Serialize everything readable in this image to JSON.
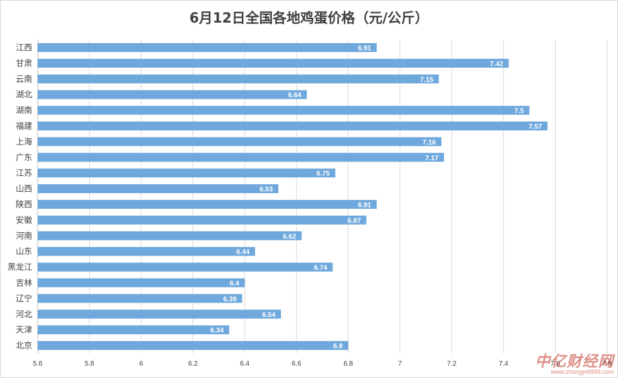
{
  "chart_data": {
    "type": "bar",
    "orientation": "horizontal",
    "title": "6月12日全国各地鸡蛋价格（元/公斤）",
    "categories": [
      "江西",
      "甘肃",
      "云南",
      "湖北",
      "湖南",
      "福建",
      "上海",
      "广东",
      "江苏",
      "山西",
      "陕西",
      "安徽",
      "河南",
      "山东",
      "黑龙江",
      "吉林",
      "辽宁",
      "河北",
      "天津",
      "北京"
    ],
    "values": [
      6.91,
      7.42,
      7.15,
      6.64,
      7.5,
      7.57,
      7.16,
      7.17,
      6.75,
      6.53,
      6.91,
      6.87,
      6.62,
      6.44,
      6.74,
      6.4,
      6.39,
      6.54,
      6.34,
      6.8
    ],
    "xlim": [
      5.6,
      7.8
    ],
    "xticks": [
      "5.6",
      "5.8",
      "6",
      "6.2",
      "6.4",
      "6.6",
      "6.8",
      "7",
      "7.2",
      "7.4",
      "7.6",
      "7.8"
    ],
    "grid": "vertical",
    "legend": "none",
    "bar_color": "#6fa8dc"
  },
  "watermark": {
    "main": "中亿财经网",
    "sub": "www.zhongyi9999.com"
  }
}
